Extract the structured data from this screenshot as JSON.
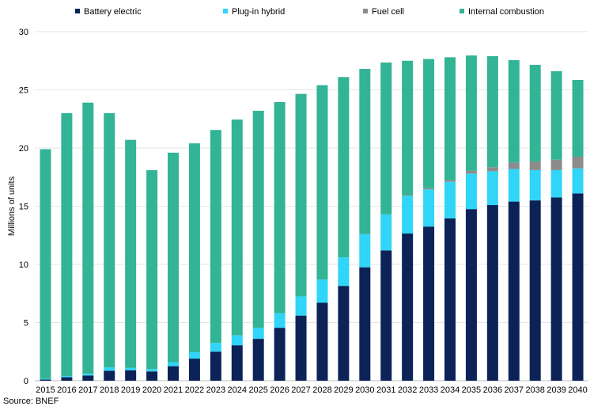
{
  "chart_data": {
    "type": "bar",
    "stacked": true,
    "title": "",
    "xlabel": "",
    "ylabel": "Millions of units",
    "ylim": [
      0,
      30
    ],
    "yticks": [
      0,
      5,
      10,
      15,
      20,
      25,
      30
    ],
    "grid": "horizontal",
    "legend_position": "top",
    "categories": [
      "2015",
      "2016",
      "2017",
      "2018",
      "2019",
      "2020",
      "2021",
      "2022",
      "2023",
      "2024",
      "2025",
      "2026",
      "2027",
      "2028",
      "2029",
      "2030",
      "2031",
      "2032",
      "2033",
      "2034",
      "2035",
      "2036",
      "2037",
      "2038",
      "2039",
      "2040"
    ],
    "series": [
      {
        "name": "Battery electric",
        "color": "#0b2357",
        "values": [
          0.1,
          0.3,
          0.45,
          0.85,
          0.9,
          0.8,
          1.25,
          1.9,
          2.5,
          3.05,
          3.6,
          4.55,
          5.6,
          6.7,
          8.15,
          9.75,
          11.2,
          12.65,
          13.25,
          13.95,
          14.75,
          15.1,
          15.4,
          15.5,
          15.75,
          16.1
        ]
      },
      {
        "name": "Plug-in hybrid",
        "color": "#30d5f7",
        "values": [
          0.05,
          0.1,
          0.15,
          0.3,
          0.2,
          0.2,
          0.35,
          0.55,
          0.75,
          0.85,
          0.95,
          1.25,
          1.65,
          2.0,
          2.45,
          2.85,
          3.1,
          3.25,
          3.2,
          3.15,
          3.05,
          2.9,
          2.8,
          2.6,
          2.35,
          2.15
        ]
      },
      {
        "name": "Fuel cell",
        "color": "#8c8c8c",
        "values": [
          0,
          0,
          0,
          0,
          0,
          0,
          0,
          0,
          0,
          0,
          0,
          0,
          0,
          0,
          0,
          0,
          0,
          0.05,
          0.1,
          0.15,
          0.25,
          0.35,
          0.55,
          0.75,
          0.9,
          1.0
        ]
      },
      {
        "name": "Internal combustion",
        "color": "#32b495",
        "values": [
          19.75,
          22.6,
          23.3,
          21.85,
          19.6,
          17.1,
          18.0,
          17.95,
          18.3,
          18.55,
          18.65,
          18.15,
          17.4,
          16.7,
          15.5,
          14.2,
          13.05,
          11.55,
          11.1,
          10.55,
          9.9,
          9.55,
          8.8,
          8.3,
          7.6,
          6.6
        ]
      }
    ]
  },
  "source_text": "Source: BNEF"
}
